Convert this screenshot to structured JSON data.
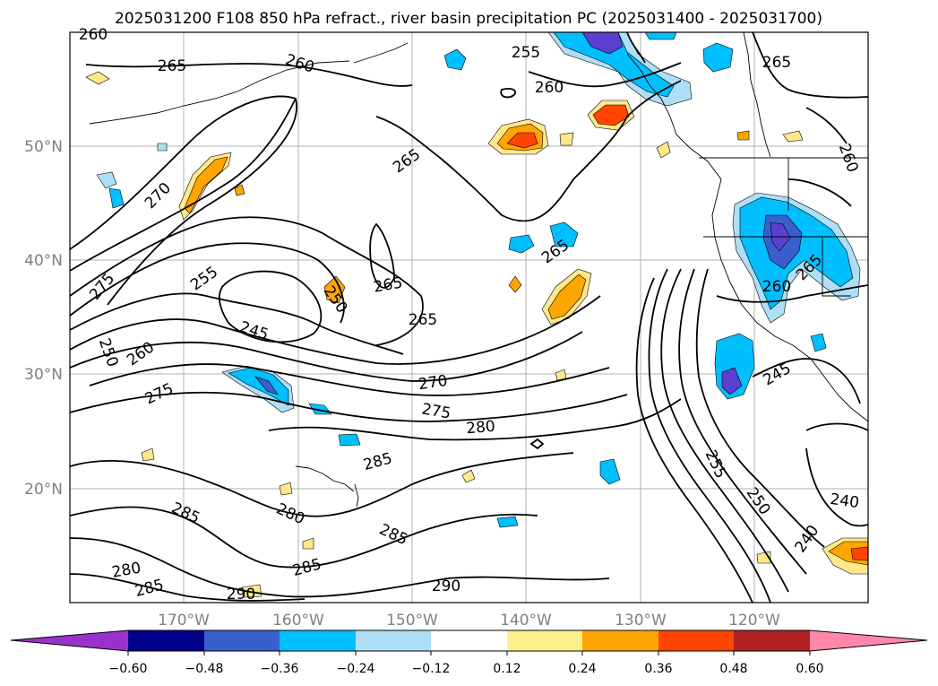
{
  "title": "2025031200 F108 850 hPa refract., river basin precipitation PC (2025031400 - 2025031700)",
  "lat_labels": [
    "50°N",
    "40°N",
    "30°N",
    "20°N"
  ],
  "lon_labels": [
    "170°W",
    "160°W",
    "150°W",
    "140°W",
    "130°W",
    "120°W"
  ],
  "contour_labels": [
    "260",
    "265",
    "260",
    "255",
    "260",
    "265",
    "260",
    "265",
    "270",
    "275",
    "255",
    "265",
    "250",
    "265",
    "265",
    "245",
    "250",
    "260",
    "275",
    "270",
    "275",
    "280",
    "285",
    "285",
    "280",
    "285",
    "280",
    "285",
    "290",
    "285",
    "290",
    "255",
    "250",
    "245",
    "240",
    "240",
    "265",
    "260"
  ],
  "colorbar": {
    "ticks": [
      "−0.60",
      "−0.48",
      "−0.36",
      "−0.24",
      "−0.12",
      "0.12",
      "0.24",
      "0.36",
      "0.48",
      "0.60"
    ],
    "colors": [
      "#9932cc",
      "#00008b",
      "#3a5fcd",
      "#00bfff",
      "#aedff7",
      "#ffffff",
      "#fff08c",
      "#ffa500",
      "#ff4500",
      "#b22222",
      "#ff88aa"
    ]
  },
  "fill_colors": {
    "neg_light": "#aedff7",
    "neg_mid": "#00bfff",
    "neg_dark": "#3a5fcd",
    "neg_darker": "#5b3fd1",
    "pos_light": "#ffe88c",
    "pos_mid": "#ffa500",
    "pos_dark": "#ff4500"
  }
}
